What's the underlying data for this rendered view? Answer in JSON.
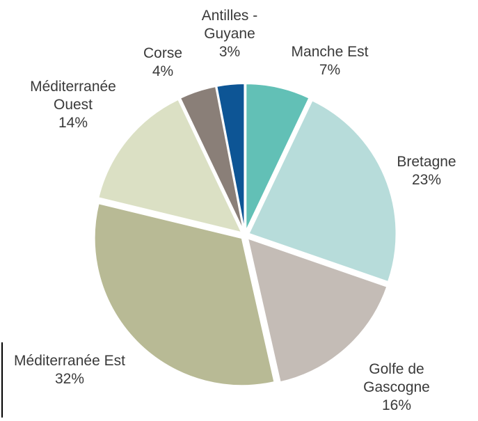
{
  "chart_data": {
    "type": "pie",
    "categories": [
      "Manche Est",
      "Bretagne",
      "Golfe de Gascogne",
      "Méditerranée Est",
      "Méditerranée Ouest",
      "Corse",
      "Antilles - Guyane"
    ],
    "values": [
      7,
      23,
      16,
      32,
      14,
      4,
      3
    ],
    "value_labels": [
      "7%",
      "23%",
      "16%",
      "32%",
      "14%",
      "4%",
      "3%"
    ],
    "colors": [
      "#62c0b6",
      "#b7dcda",
      "#c4bcb6",
      "#b8ba95",
      "#dbe0c4",
      "#8a7f78",
      "#0d5595"
    ]
  }
}
